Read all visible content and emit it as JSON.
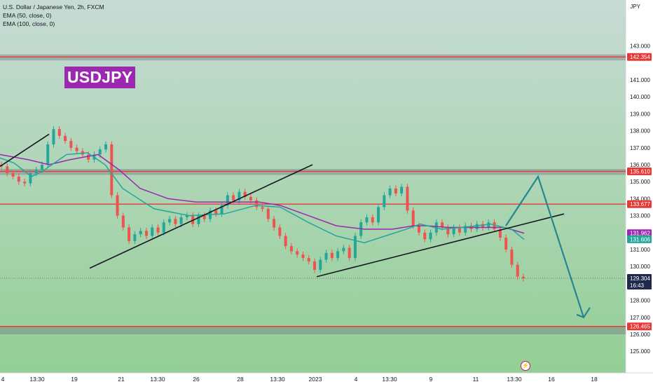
{
  "chart_data": {
    "type": "candlestick",
    "symbol_line": "U.S. Dollar / Japanese Yen, 2h, FXCM",
    "indicators": [
      {
        "label": "EMA (50, close, 0)",
        "color": "#26a69a"
      },
      {
        "label": "EMA (100, close, 0)",
        "color": "#9c27b0"
      }
    ],
    "badge": "USDJPY",
    "unit": "JPY",
    "y_range": [
      124.3,
      144.3
    ],
    "y_ticks": [
      "143.000",
      "141.000",
      "140.000",
      "139.000",
      "138.000",
      "137.000",
      "136.000",
      "135.000",
      "134.000",
      "133.000",
      "131.000",
      "130.000",
      "128.000",
      "127.000",
      "126.000",
      "125.000"
    ],
    "x_ticks": [
      "4",
      "13:30",
      "19",
      "21",
      "13:30",
      "26",
      "28",
      "13:30",
      "2023",
      "4",
      "13:30",
      "9",
      "11",
      "13:30",
      "16",
      "18"
    ],
    "price_labels": [
      {
        "text": "142.354",
        "value": 142.354,
        "bg": "#e53935"
      },
      {
        "text": "135.610",
        "value": 135.61,
        "bg": "#e53935"
      },
      {
        "text": "133.677",
        "value": 133.677,
        "bg": "#e53935"
      },
      {
        "text": "131.962",
        "value": 131.962,
        "bg": "#9c27b0"
      },
      {
        "text": "131.606",
        "value": 131.606,
        "bg": "#26a69a"
      },
      {
        "text": "126.465",
        "value": 126.465,
        "bg": "#e53935"
      }
    ],
    "current_price": {
      "text": "129.304",
      "countdown": "16:43",
      "value": 129.304
    },
    "horizontal_levels": [
      142.354,
      135.61,
      133.677,
      126.465
    ],
    "zones": [
      {
        "from": 142.15,
        "to": 142.5
      },
      {
        "from": 135.4,
        "to": 135.75
      },
      {
        "from": 126.0,
        "to": 126.465
      }
    ],
    "candles": [
      [
        136.0,
        135.9
      ],
      [
        135.9,
        135.5
      ],
      [
        135.5,
        135.3
      ],
      [
        135.3,
        135.0
      ],
      [
        135.0,
        134.9
      ],
      [
        134.9,
        135.5
      ],
      [
        135.5,
        135.7
      ],
      [
        135.7,
        136.0
      ],
      [
        136.0,
        137.2
      ],
      [
        137.2,
        138.1
      ],
      [
        138.1,
        137.7
      ],
      [
        137.7,
        137.4
      ],
      [
        137.4,
        137.0
      ],
      [
        137.0,
        136.8
      ],
      [
        136.8,
        136.6
      ],
      [
        136.6,
        136.3
      ],
      [
        136.3,
        136.6
      ],
      [
        136.6,
        136.9
      ],
      [
        136.9,
        137.2
      ],
      [
        137.2,
        134.2
      ],
      [
        134.2,
        133.0
      ],
      [
        133.0,
        132.3
      ],
      [
        132.3,
        131.5
      ],
      [
        131.5,
        131.9
      ],
      [
        131.9,
        132.1
      ],
      [
        132.1,
        131.8
      ],
      [
        131.8,
        132.3
      ],
      [
        132.3,
        132.0
      ],
      [
        132.0,
        132.6
      ],
      [
        132.6,
        132.8
      ],
      [
        132.8,
        132.5
      ],
      [
        132.5,
        132.9
      ],
      [
        132.9,
        133.0
      ],
      [
        133.0,
        132.5
      ],
      [
        132.5,
        133.0
      ],
      [
        133.0,
        132.8
      ],
      [
        132.8,
        133.3
      ],
      [
        133.3,
        133.1
      ],
      [
        133.1,
        133.6
      ],
      [
        133.6,
        134.2
      ],
      [
        134.2,
        133.9
      ],
      [
        133.9,
        134.4
      ],
      [
        134.4,
        134.1
      ],
      [
        134.1,
        133.9
      ],
      [
        133.9,
        133.5
      ],
      [
        133.5,
        133.4
      ],
      [
        133.4,
        132.8
      ],
      [
        132.8,
        132.3
      ],
      [
        132.3,
        131.8
      ],
      [
        131.8,
        131.2
      ],
      [
        131.2,
        130.9
      ],
      [
        130.9,
        130.7
      ],
      [
        130.7,
        130.5
      ],
      [
        130.5,
        130.3
      ],
      [
        130.3,
        129.8
      ],
      [
        129.8,
        130.4
      ],
      [
        130.4,
        130.8
      ],
      [
        130.8,
        130.5
      ],
      [
        130.5,
        130.9
      ],
      [
        130.9,
        131.1
      ],
      [
        131.1,
        130.5
      ],
      [
        130.5,
        131.8
      ],
      [
        131.8,
        132.6
      ],
      [
        132.6,
        132.9
      ],
      [
        132.9,
        132.6
      ],
      [
        132.6,
        133.5
      ],
      [
        133.5,
        134.2
      ],
      [
        134.2,
        134.6
      ],
      [
        134.6,
        134.3
      ],
      [
        134.3,
        134.7
      ],
      [
        134.7,
        133.3
      ],
      [
        133.3,
        132.4
      ],
      [
        132.4,
        132.0
      ],
      [
        132.0,
        131.6
      ],
      [
        131.6,
        132.0
      ],
      [
        132.0,
        132.6
      ],
      [
        132.6,
        132.3
      ],
      [
        132.3,
        131.9
      ],
      [
        131.9,
        132.3
      ],
      [
        132.3,
        132.0
      ],
      [
        132.0,
        132.4
      ],
      [
        132.4,
        132.2
      ],
      [
        132.2,
        132.5
      ],
      [
        132.5,
        132.3
      ],
      [
        132.3,
        132.6
      ],
      [
        132.6,
        132.2
      ],
      [
        132.2,
        131.7
      ],
      [
        131.7,
        131.0
      ],
      [
        131.0,
        130.1
      ],
      [
        130.1,
        129.4
      ],
      [
        129.4,
        129.3
      ]
    ],
    "ema50": [
      [
        0,
        136.4
      ],
      [
        20,
        136.1
      ],
      [
        45,
        135.3
      ],
      [
        60,
        135.6
      ],
      [
        95,
        136.6
      ],
      [
        125,
        136.7
      ],
      [
        150,
        136.0
      ],
      [
        175,
        134.6
      ],
      [
        220,
        133.4
      ],
      [
        270,
        133.0
      ],
      [
        320,
        133.1
      ],
      [
        365,
        133.6
      ],
      [
        400,
        133.5
      ],
      [
        440,
        132.6
      ],
      [
        480,
        131.8
      ],
      [
        520,
        131.4
      ],
      [
        550,
        131.8
      ],
      [
        580,
        132.2
      ],
      [
        600,
        132.5
      ],
      [
        630,
        132.2
      ],
      [
        660,
        132.3
      ],
      [
        700,
        132.5
      ],
      [
        730,
        132.2
      ],
      [
        748,
        131.6
      ]
    ],
    "ema100": [
      [
        0,
        136.6
      ],
      [
        40,
        136.3
      ],
      [
        70,
        136.0
      ],
      [
        100,
        136.3
      ],
      [
        140,
        136.6
      ],
      [
        170,
        135.7
      ],
      [
        200,
        134.6
      ],
      [
        240,
        134.0
      ],
      [
        280,
        133.8
      ],
      [
        320,
        133.8
      ],
      [
        370,
        133.8
      ],
      [
        400,
        133.6
      ],
      [
        440,
        133.0
      ],
      [
        480,
        132.4
      ],
      [
        520,
        132.2
      ],
      [
        560,
        132.2
      ],
      [
        590,
        132.4
      ],
      [
        610,
        132.4
      ],
      [
        640,
        132.3
      ],
      [
        680,
        132.3
      ],
      [
        720,
        132.3
      ],
      [
        748,
        131.962
      ]
    ],
    "trendlines": [
      [
        [
          0,
          135.9
        ],
        [
          70,
          137.8
        ]
      ],
      [
        [
          128,
          129.9
        ],
        [
          446,
          136.0
        ]
      ],
      [
        [
          452,
          129.4
        ],
        [
          805,
          133.1
        ]
      ]
    ],
    "projection": [
      [
        722,
        132.4
      ],
      [
        768,
        135.3
      ],
      [
        833,
        127.0
      ]
    ],
    "colors": {
      "up": "#26a69a",
      "down": "#ef5350",
      "line": "#131722",
      "projection": "#26868f",
      "level": "#e53935"
    }
  }
}
